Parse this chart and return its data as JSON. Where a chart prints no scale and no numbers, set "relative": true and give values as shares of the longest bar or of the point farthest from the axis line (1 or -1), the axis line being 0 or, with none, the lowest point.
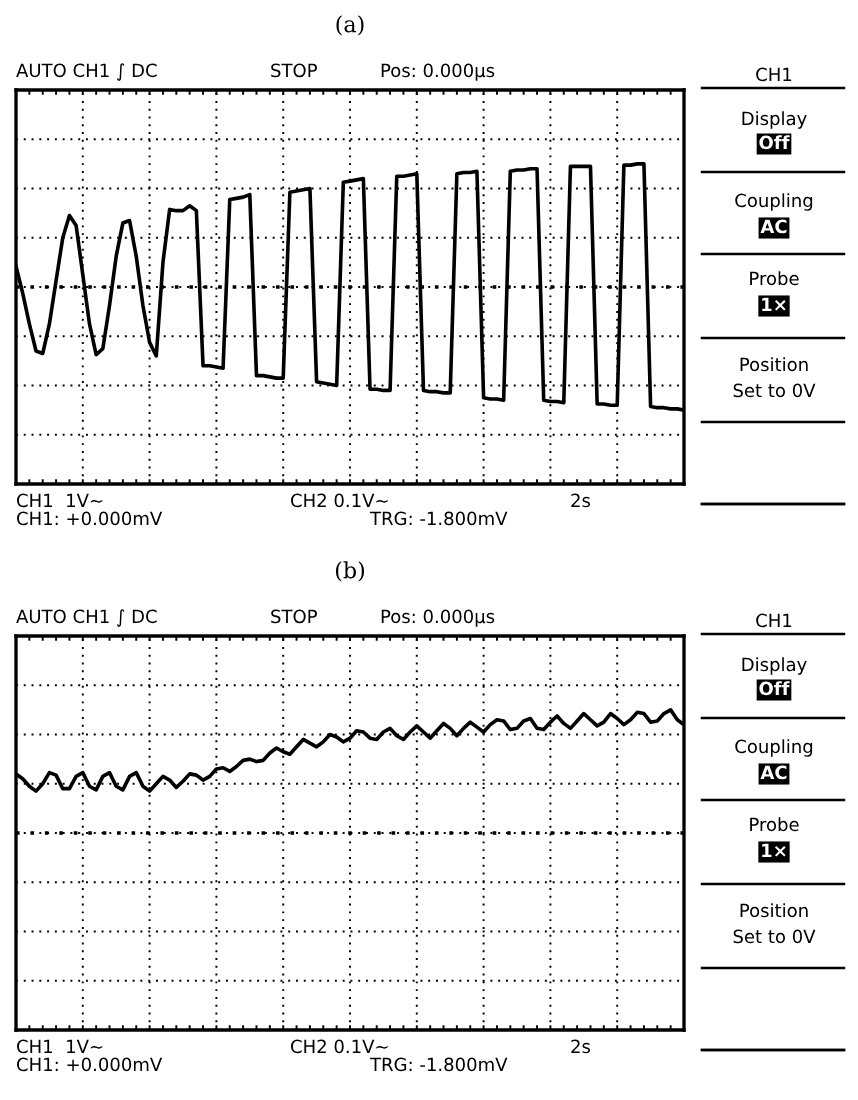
{
  "chart_data": [
    {
      "type": "line",
      "title": "(a)",
      "relative": true,
      "grid": true,
      "ref_lines": [
        {
          "axis": "y",
          "value": 0,
          "color": "#000000",
          "line_style": "dotted"
        }
      ],
      "categories": [
        null,
        null,
        null,
        null,
        null,
        null,
        null,
        null,
        null,
        null,
        null,
        null,
        null,
        null,
        null,
        null,
        null,
        null,
        null,
        null,
        null,
        null,
        null,
        null,
        null,
        null,
        null,
        null,
        null,
        null,
        null,
        null,
        null,
        null,
        null,
        null,
        null,
        null,
        null,
        null,
        null,
        null,
        null,
        null,
        null,
        null,
        null,
        null,
        null,
        null,
        null,
        null,
        null,
        null,
        null,
        null,
        null,
        null,
        null,
        null,
        null,
        null,
        null,
        null,
        null,
        null,
        null,
        null,
        null,
        null,
        null,
        null,
        null,
        null,
        null,
        null,
        null,
        null,
        null,
        null,
        null,
        null,
        null,
        null,
        null,
        null,
        null,
        null,
        null,
        null,
        null,
        null,
        null,
        null,
        null,
        null,
        null,
        null,
        null,
        null,
        null
      ],
      "series": [
        {
          "color": "#000000",
          "values": [
            0.17,
            -0.05,
            -0.3,
            -0.52,
            -0.54,
            -0.3,
            0.05,
            0.4,
            0.58,
            0.5,
            0.1,
            -0.3,
            -0.55,
            -0.5,
            -0.15,
            0.25,
            0.52,
            0.54,
            0.25,
            -0.15,
            -0.45,
            -0.56,
            0.2,
            0.63,
            0.62,
            0.62,
            0.66,
            0.62,
            -0.64,
            -0.64,
            -0.65,
            -0.66,
            0.71,
            0.72,
            0.73,
            0.75,
            -0.72,
            -0.72,
            -0.73,
            -0.74,
            -0.74,
            0.77,
            0.78,
            0.79,
            0.8,
            -0.77,
            -0.78,
            -0.79,
            -0.8,
            0.85,
            0.86,
            0.87,
            0.88,
            -0.83,
            -0.83,
            -0.84,
            -0.84,
            0.9,
            0.9,
            0.91,
            0.92,
            -0.84,
            -0.85,
            -0.85,
            -0.86,
            -0.86,
            0.92,
            0.93,
            0.93,
            0.94,
            -0.9,
            -0.91,
            -0.91,
            -0.92,
            0.94,
            0.95,
            0.95,
            0.96,
            0.96,
            -0.92,
            -0.93,
            -0.93,
            -0.94,
            0.98,
            0.98,
            0.98,
            0.98,
            -0.95,
            -0.95,
            -0.96,
            -0.96,
            0.99,
            0.99,
            1.0,
            1.0,
            -0.97,
            -0.98,
            -0.98,
            -0.99,
            -0.99,
            -1.0
          ]
        }
      ],
      "annotations": [
        "AUTO CH1 ∫ DC",
        "STOP",
        "Pos: 0.000µs",
        "CH1  1V∼",
        "CH2 0.1V∼",
        "2s",
        "CH1: +0.000mV",
        "TRG: -1.800mV",
        "CH1",
        "Display",
        "Off",
        "Coupling",
        "AC",
        "Probe",
        "1×",
        "Position",
        "Set to 0V"
      ]
    },
    {
      "type": "line",
      "title": "(b)",
      "relative": true,
      "grid": true,
      "ref_lines": [
        {
          "axis": "y",
          "value": 0,
          "color": "#000000",
          "line_style": "dotted"
        }
      ],
      "categories": [
        null,
        null,
        null,
        null,
        null,
        null,
        null,
        null,
        null,
        null,
        null,
        null,
        null,
        null,
        null,
        null,
        null,
        null,
        null,
        null,
        null,
        null,
        null,
        null,
        null,
        null,
        null,
        null,
        null,
        null,
        null,
        null,
        null,
        null,
        null,
        null,
        null,
        null,
        null,
        null,
        null,
        null,
        null,
        null,
        null,
        null,
        null,
        null,
        null,
        null,
        null,
        null,
        null,
        null,
        null,
        null,
        null,
        null,
        null,
        null,
        null,
        null,
        null,
        null,
        null,
        null,
        null,
        null,
        null,
        null,
        null,
        null,
        null,
        null,
        null,
        null,
        null,
        null,
        null,
        null,
        null,
        null,
        null,
        null,
        null,
        null,
        null,
        null,
        null,
        null,
        null,
        null,
        null,
        null,
        null,
        null,
        null,
        null,
        null,
        null,
        null
      ],
      "series": [
        {
          "color": "#000000",
          "values": [
            0.48,
            0.44,
            0.38,
            0.34,
            0.4,
            0.49,
            0.47,
            0.36,
            0.36,
            0.46,
            0.49,
            0.38,
            0.35,
            0.46,
            0.49,
            0.38,
            0.35,
            0.46,
            0.49,
            0.38,
            0.34,
            0.4,
            0.46,
            0.43,
            0.37,
            0.42,
            0.48,
            0.47,
            0.43,
            0.46,
            0.52,
            0.53,
            0.5,
            0.54,
            0.59,
            0.6,
            0.58,
            0.59,
            0.65,
            0.69,
            0.66,
            0.64,
            0.7,
            0.76,
            0.73,
            0.7,
            0.74,
            0.8,
            0.78,
            0.74,
            0.77,
            0.83,
            0.82,
            0.77,
            0.76,
            0.82,
            0.85,
            0.79,
            0.76,
            0.82,
            0.87,
            0.82,
            0.77,
            0.83,
            0.89,
            0.85,
            0.79,
            0.85,
            0.9,
            0.86,
            0.82,
            0.88,
            0.92,
            0.91,
            0.84,
            0.85,
            0.91,
            0.93,
            0.85,
            0.84,
            0.9,
            0.95,
            0.89,
            0.85,
            0.91,
            0.97,
            0.92,
            0.87,
            0.9,
            0.97,
            0.93,
            0.88,
            0.92,
            0.98,
            0.97,
            0.9,
            0.91,
            0.97,
            1.0,
            0.92,
            0.88
          ]
        }
      ],
      "annotations": [
        "AUTO CH1 ∫ DC",
        "STOP",
        "Pos: 0.000µs",
        "CH1  1V∼",
        "CH2 0.1V∼",
        "2s",
        "CH1: +0.000mV",
        "TRG: -1.800mV",
        "CH1",
        "Display",
        "Off",
        "Coupling",
        "AC",
        "Probe",
        "1×",
        "Position",
        "Set to 0V"
      ]
    }
  ]
}
